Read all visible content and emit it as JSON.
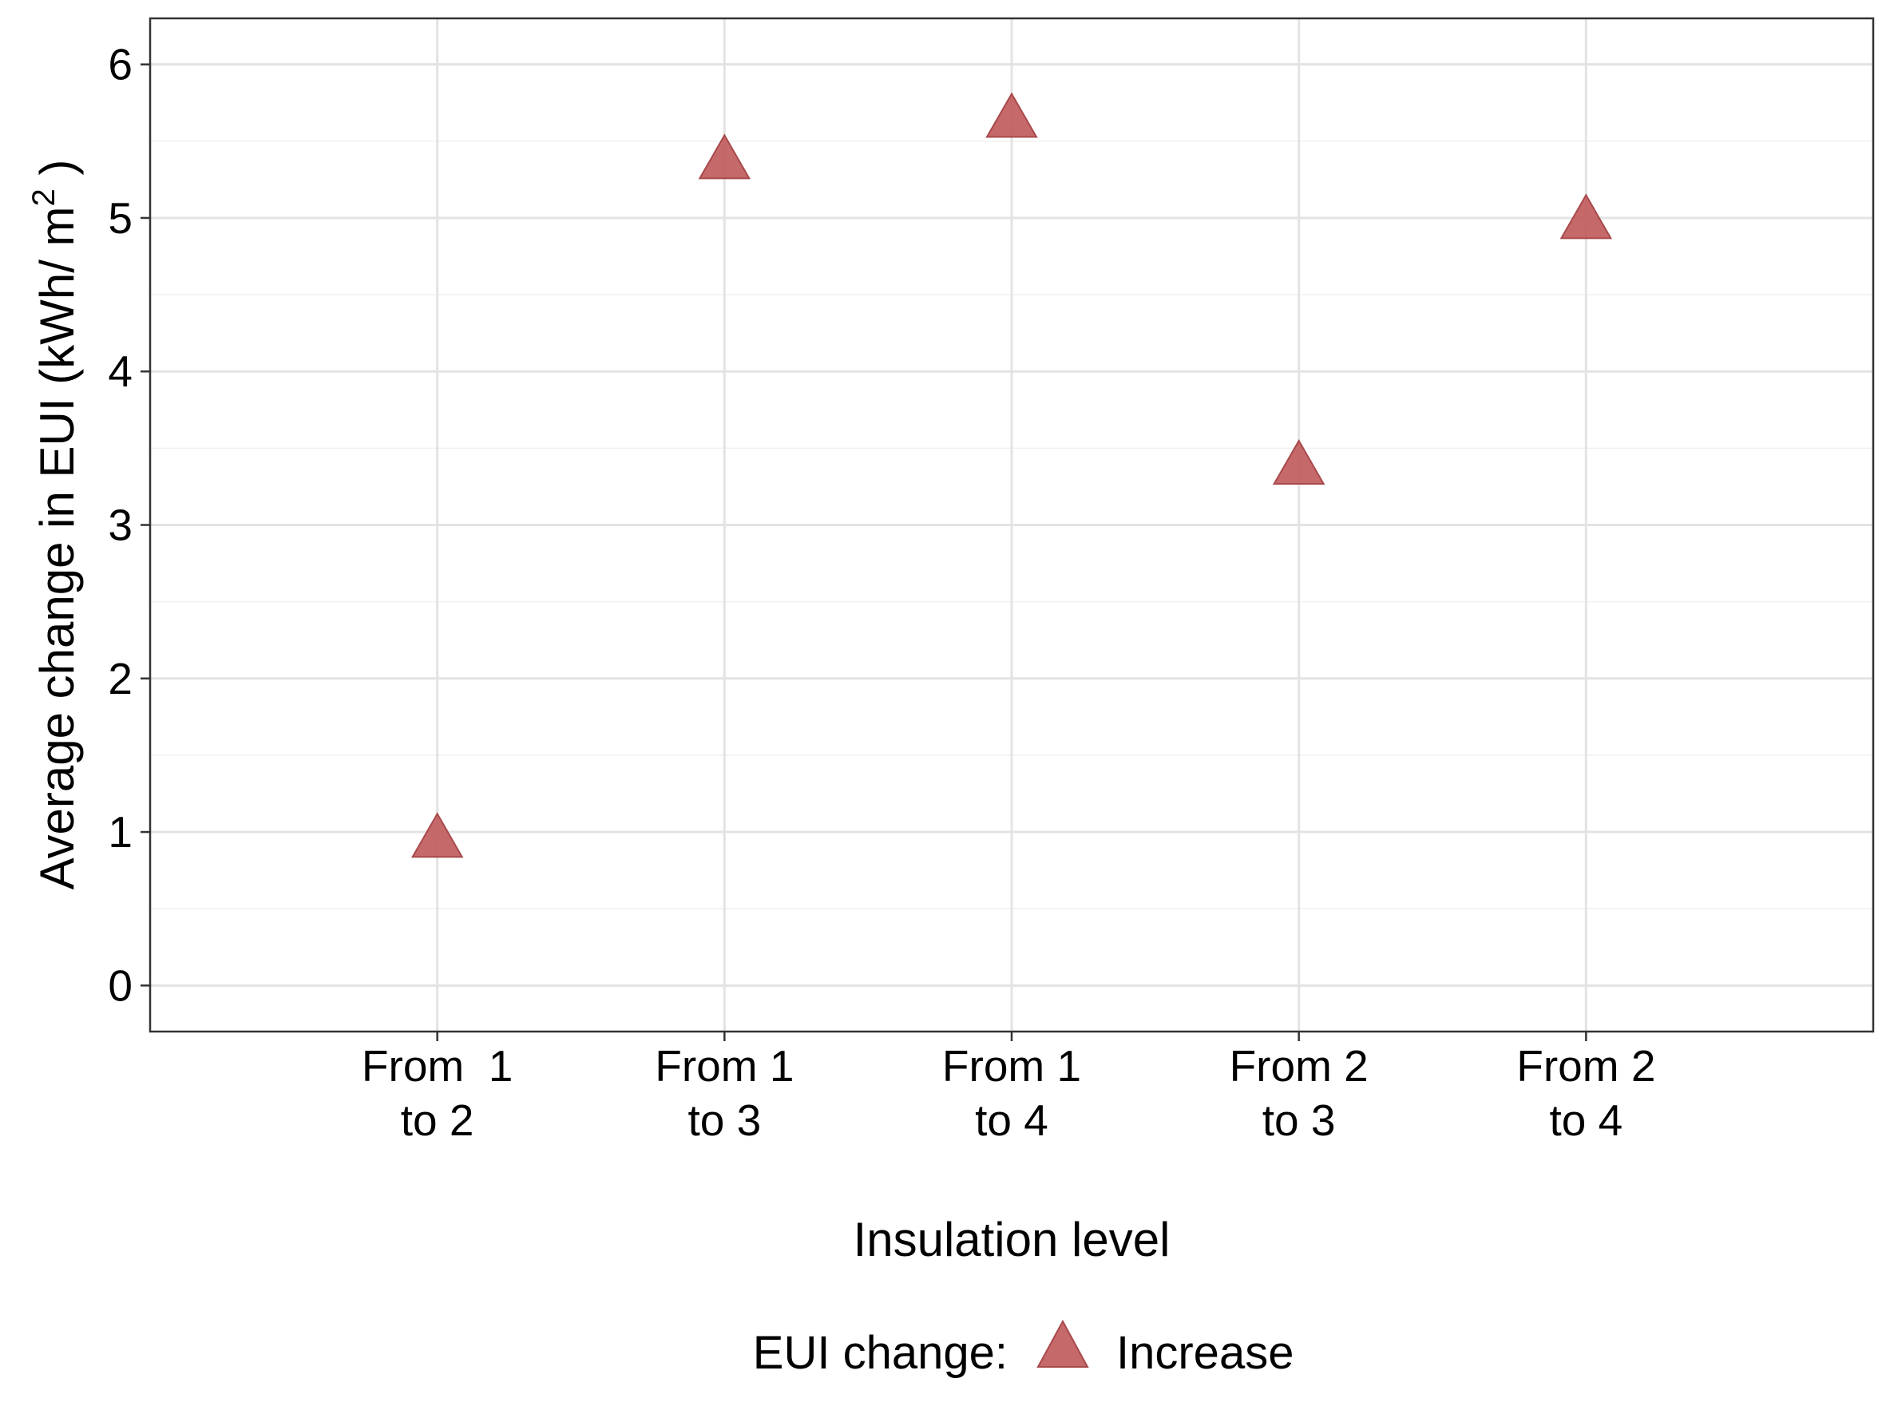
{
  "chart_data": {
    "type": "scatter",
    "categories": [
      [
        "From  1",
        "to 2"
      ],
      [
        "From 1",
        "to 3"
      ],
      [
        "From 1",
        "to 4"
      ],
      [
        "From 2",
        "to 3"
      ],
      [
        "From 2",
        "to 4"
      ]
    ],
    "series": [
      {
        "name": "Increase",
        "values": [
          0.95,
          5.37,
          5.64,
          3.38,
          4.98
        ],
        "color": "#c0595b",
        "marker": "triangle"
      }
    ],
    "xlabel": "Insulation level",
    "ylabel_main": "Average change in EUI (kWh/ m",
    "ylabel_sup": "2",
    "ylabel_close": " )",
    "ylim": [
      -0.3,
      6.3
    ],
    "yticks": [
      0,
      1,
      2,
      3,
      4,
      5,
      6
    ],
    "grid": true,
    "legend": {
      "title": "EUI change:",
      "position": "bottom"
    }
  }
}
